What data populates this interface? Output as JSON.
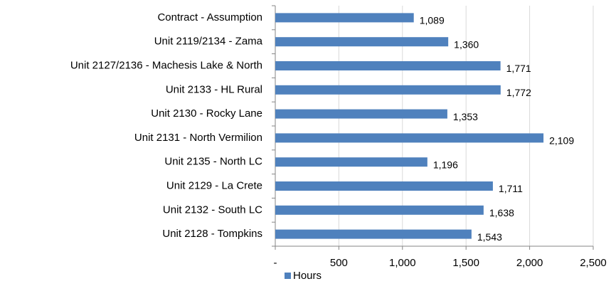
{
  "chart_data": {
    "type": "bar",
    "orientation": "horizontal",
    "categories": [
      "Contract - Assumption",
      "Unit 2119/2134 - Zama",
      "Unit 2127/2136 - Machesis Lake & North",
      "Unit 2133 - HL Rural",
      "Unit 2130 - Rocky Lane",
      "Unit 2131 - North Vermilion",
      "Unit 2135 - North LC",
      "Unit 2129 - La Crete",
      "Unit 2132 - South LC",
      "Unit 2128 - Tompkins"
    ],
    "series": [
      {
        "name": "Hours",
        "color": "#4f81bd",
        "values": [
          1089,
          1360,
          1771,
          1772,
          1353,
          2109,
          1196,
          1711,
          1638,
          1543
        ],
        "value_labels": [
          "1,089",
          "1,360",
          "1,771",
          "1,772",
          "1,353",
          "2,109",
          "1,196",
          "1,711",
          "1,638",
          "1,543"
        ]
      }
    ],
    "xlim": [
      0,
      2500
    ],
    "xticks": [
      {
        "value": 0,
        "label": "-"
      },
      500,
      {
        "value": 1000,
        "label": "1,000"
      },
      {
        "value": 1500,
        "label": "1,500"
      },
      {
        "value": 2000,
        "label": "2,000"
      },
      {
        "value": 2500,
        "label": "2,500"
      }
    ],
    "grid": true,
    "legend": "bottom"
  }
}
